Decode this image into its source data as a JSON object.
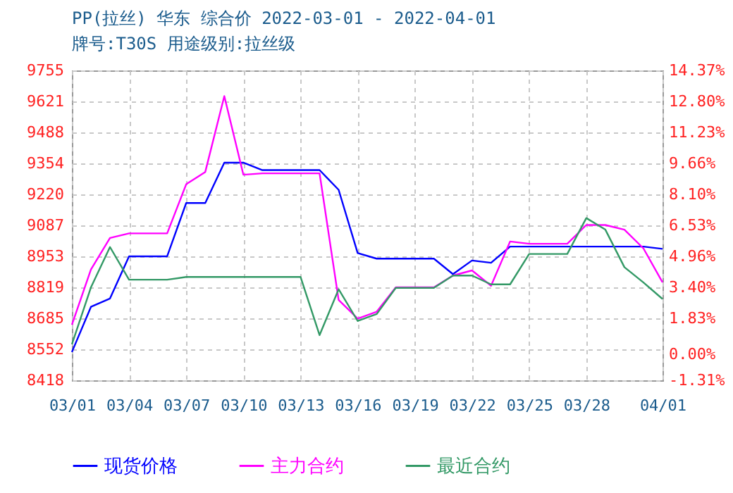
{
  "chart_data": {
    "type": "line",
    "title": "PP(拉丝) 华东 综合价 2022-03-01 - 2022-04-01",
    "subtitle": "牌号:T30S 用途级别:拉丝级",
    "x": [
      "2022-03-01",
      "2022-03-02",
      "2022-03-03",
      "2022-03-04",
      "2022-03-05",
      "2022-03-06",
      "2022-03-07",
      "2022-03-08",
      "2022-03-09",
      "2022-03-10",
      "2022-03-11",
      "2022-03-12",
      "2022-03-13",
      "2022-03-14",
      "2022-03-15",
      "2022-03-16",
      "2022-03-17",
      "2022-03-18",
      "2022-03-19",
      "2022-03-20",
      "2022-03-21",
      "2022-03-22",
      "2022-03-23",
      "2022-03-24",
      "2022-03-25",
      "2022-03-26",
      "2022-03-27",
      "2022-03-28",
      "2022-03-29",
      "2022-03-30",
      "2022-03-31",
      "2022-04-01"
    ],
    "series": [
      {
        "name": "现货价格",
        "color": "#0000ff",
        "values": [
          8540,
          8735,
          8771,
          8953,
          8953,
          8953,
          9183,
          9183,
          9357,
          9357,
          9325,
          9325,
          9325,
          9325,
          9240,
          8967,
          8943,
          8943,
          8943,
          8943,
          8876,
          8935,
          8925,
          8995,
          8995,
          8995,
          8995,
          8995,
          8995,
          8995,
          8995,
          8985
        ]
      },
      {
        "name": "主力合约",
        "color": "#ff00ff",
        "values": [
          8658,
          8896,
          9032,
          9052,
          9052,
          9052,
          9264,
          9317,
          9644,
          9305,
          9311,
          9311,
          9311,
          9311,
          8765,
          8684,
          8714,
          8819,
          8819,
          8819,
          8870,
          8892,
          8826,
          9017,
          9007,
          9007,
          9007,
          9088,
          9088,
          9068,
          8987,
          8841
        ]
      },
      {
        "name": "最近合约",
        "color": "#339966",
        "values": [
          8573,
          8819,
          8993,
          8852,
          8852,
          8852,
          8864,
          8864,
          8864,
          8864,
          8864,
          8864,
          8864,
          8613,
          8811,
          8674,
          8704,
          8817,
          8817,
          8817,
          8870,
          8870,
          8832,
          8832,
          8963,
          8963,
          8963,
          9118,
          9068,
          8906,
          8840,
          8769
        ]
      }
    ],
    "xlim": [
      "2022-03-01",
      "2022-04-01"
    ],
    "xticks": [
      {
        "value": "2022-03-01",
        "label": "03/01"
      },
      {
        "value": "2022-03-04",
        "label": "03/04"
      },
      {
        "value": "2022-03-07",
        "label": "03/07"
      },
      {
        "value": "2022-03-10",
        "label": "03/10"
      },
      {
        "value": "2022-03-13",
        "label": "03/13"
      },
      {
        "value": "2022-03-16",
        "label": "03/16"
      },
      {
        "value": "2022-03-19",
        "label": "03/19"
      },
      {
        "value": "2022-03-22",
        "label": "03/22"
      },
      {
        "value": "2022-03-25",
        "label": "03/25"
      },
      {
        "value": "2022-03-28",
        "label": "03/28"
      },
      {
        "value": "2022-04-01",
        "label": "04/01"
      }
    ],
    "ylim": [
      8418,
      9755
    ],
    "yticks": [
      8418,
      8552,
      8685,
      8819,
      8953,
      9087,
      9220,
      9354,
      9488,
      9621,
      9755
    ],
    "y2lim": [
      -1.31,
      14.37
    ],
    "y2ticks": [
      {
        "value": -1.31,
        "label": "-1.31%"
      },
      {
        "value": 0,
        "label": "0.00%"
      },
      {
        "value": 1.83,
        "label": "1.83%"
      },
      {
        "value": 3.4,
        "label": "3.40%"
      },
      {
        "value": 4.96,
        "label": "4.96%"
      },
      {
        "value": 6.53,
        "label": "6.53%"
      },
      {
        "value": 8.1,
        "label": "8.10%"
      },
      {
        "value": 9.66,
        "label": "9.66%"
      },
      {
        "value": 11.23,
        "label": "11.23%"
      },
      {
        "value": 12.8,
        "label": "12.80%"
      },
      {
        "value": 14.37,
        "label": "14.37%"
      }
    ],
    "grid": true,
    "legend": "bottom",
    "marker": "none",
    "line_style": "solid"
  }
}
